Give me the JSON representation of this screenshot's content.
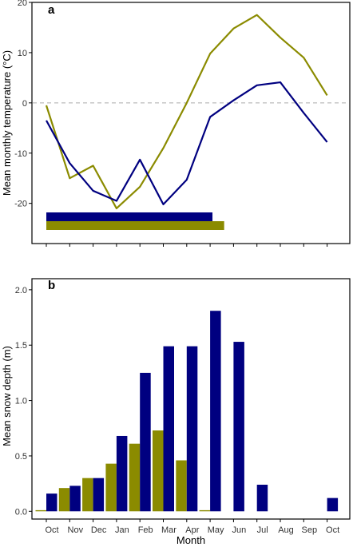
{
  "colors": {
    "site1": "#000080",
    "site2": "#8b8b00",
    "zero_line": "#aaaaaa",
    "axis": "#000000"
  },
  "chart_data": [
    {
      "type": "line",
      "panel_label": "a",
      "ylabel": "Mean monthly temperature (°C)",
      "ylim": [
        -28,
        20
      ],
      "yticks": [
        20,
        10,
        0,
        -10,
        -20
      ],
      "x": [
        "Oct",
        "Nov",
        "Dec",
        "Jan",
        "Feb",
        "Mar",
        "Apr",
        "May",
        "Jun",
        "Jul",
        "Aug",
        "Sep",
        "Oct"
      ],
      "reference_line": 0,
      "series": [
        {
          "color": "#000080",
          "values": [
            -3.5,
            -12,
            -17.5,
            -19.5,
            -11.3,
            -20.2,
            -15.3,
            -2.8,
            0.5,
            3.5,
            4.1,
            -2,
            -7.8
          ]
        },
        {
          "color": "#8b8b00",
          "values": [
            -0.5,
            -15,
            -12.5,
            -21,
            -16.7,
            -9,
            0,
            9.8,
            14.8,
            17.5,
            13,
            9,
            1.5
          ]
        }
      ],
      "season_bars": [
        {
          "color": "#000080",
          "start_month": 0,
          "end_month": 7.1
        },
        {
          "color": "#8b8b00",
          "start_month": 0,
          "end_month": 7.6
        }
      ]
    },
    {
      "type": "bar",
      "panel_label": "b",
      "xlabel": "Month",
      "ylabel": "Mean snow depth (m)",
      "ylim": [
        -0.07,
        2.1
      ],
      "yticks": [
        "0.0",
        "0.5",
        "1.0",
        "1.5",
        "2.0"
      ],
      "categories": [
        "Oct",
        "Nov",
        "Dec",
        "Jan",
        "Feb",
        "Mar",
        "Apr",
        "May",
        "Jun",
        "Jul",
        "Aug",
        "Sep",
        "Oct"
      ],
      "series": [
        {
          "color": "#8b8b00",
          "values": [
            0.01,
            0.21,
            0.3,
            0.43,
            0.61,
            0.73,
            0.46,
            0.01,
            null,
            null,
            null,
            null,
            null
          ]
        },
        {
          "color": "#000080",
          "values": [
            0.16,
            0.23,
            0.3,
            0.68,
            1.25,
            1.49,
            1.49,
            1.81,
            1.53,
            0.24,
            null,
            null,
            0.12
          ]
        }
      ]
    }
  ]
}
